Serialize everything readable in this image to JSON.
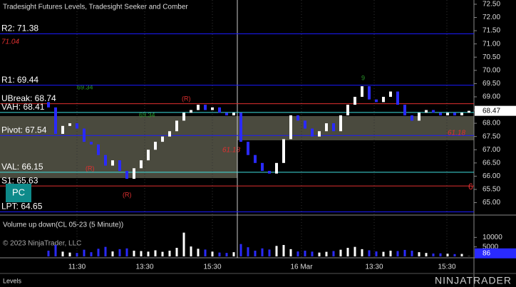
{
  "chart_data": {
    "type": "candlestick",
    "title": "Tradesight Futures Levels, Tradesight Seeker and Comber",
    "volume_title": "Volume up down(CL 05-23 (5 Minute))",
    "copyright": "© 2023 NinjaTrader, LLC",
    "panel_label": "Levels",
    "brand": "NINJATRADER",
    "badge": "PC",
    "up_color": "#ffffff",
    "down_color": "#2a2aff",
    "open": [
      68.8,
      68.6,
      67.6,
      67.9,
      68.0,
      67.8,
      67.3,
      67.2,
      66.8,
      66.4,
      66.6,
      66.2,
      65.9,
      66.3,
      66.6,
      67.0,
      67.3,
      67.5,
      67.7,
      68.1,
      68.4,
      68.5,
      68.7,
      68.5,
      68.6,
      68.4,
      68.3,
      68.4,
      67.3,
      66.8,
      66.5,
      66.2,
      66.1,
      66.5,
      67.4,
      68.3,
      68.1,
      67.8,
      67.5,
      67.7,
      68.0,
      67.7,
      68.3,
      68.7,
      69.0,
      69.4,
      68.9,
      68.8,
      69.0,
      69.2,
      68.7,
      68.3,
      68.1,
      68.4,
      68.5,
      68.4,
      68.3,
      68.4,
      68.3,
      68.4
    ],
    "close": [
      68.6,
      67.6,
      67.9,
      68.0,
      67.8,
      67.3,
      67.2,
      66.8,
      66.4,
      66.6,
      66.2,
      65.9,
      66.3,
      66.6,
      67.0,
      67.3,
      67.5,
      67.7,
      68.1,
      68.4,
      68.5,
      68.7,
      68.5,
      68.6,
      68.4,
      68.3,
      68.4,
      67.3,
      66.8,
      66.5,
      66.2,
      66.1,
      66.5,
      67.4,
      68.3,
      68.1,
      67.8,
      67.5,
      67.7,
      68.0,
      67.7,
      68.3,
      68.7,
      69.0,
      69.4,
      68.9,
      68.8,
      69.0,
      69.2,
      68.7,
      68.3,
      68.1,
      68.4,
      68.5,
      68.4,
      68.3,
      68.4,
      68.3,
      68.4,
      68.47
    ],
    "volume": [
      3000,
      6000,
      2500,
      2000,
      1800,
      3500,
      2200,
      4000,
      5000,
      2600,
      3800,
      4200,
      3000,
      2800,
      2500,
      3200,
      2400,
      3000,
      4500,
      12500,
      5200,
      4000,
      3600,
      2500,
      2000,
      1800,
      2200,
      6500,
      4800,
      3000,
      4200,
      3600,
      5500,
      6000,
      3800,
      2600,
      3000,
      2500,
      2000,
      2400,
      2800,
      3500,
      4500,
      5000,
      3800,
      3200,
      2600,
      2400,
      3000,
      2800,
      3400,
      3000,
      2200,
      1800,
      1500,
      1600,
      1400,
      1200,
      1300,
      86
    ],
    "ylim": [
      64.53,
      72.66
    ],
    "yticks": [
      {
        "value": 72.5,
        "label": "72.50"
      },
      {
        "value": 72.0,
        "label": "72.00"
      },
      {
        "value": 71.5,
        "label": "71.50"
      },
      {
        "value": 71.0,
        "label": "71.00"
      },
      {
        "value": 70.5,
        "label": "70.50"
      },
      {
        "value": 70.0,
        "label": "70.00"
      },
      {
        "value": 69.5,
        "label": "69.50"
      },
      {
        "value": 69.0,
        "label": "69.00"
      },
      {
        "value": 68.5,
        "label": "68.50"
      },
      {
        "value": 68.0,
        "label": "68.00"
      },
      {
        "value": 67.5,
        "label": "67.50"
      },
      {
        "value": 67.0,
        "label": "67.00"
      },
      {
        "value": 66.5,
        "label": "66.50"
      },
      {
        "value": 66.0,
        "label": "66.00"
      },
      {
        "value": 65.5,
        "label": "65.50"
      },
      {
        "value": 65.0,
        "label": "65.00"
      }
    ],
    "vlim": [
      0,
      21000
    ],
    "vticks": [
      10000,
      5000
    ],
    "last_price": {
      "value": 68.47,
      "label": "68.47"
    },
    "last_volume": 86,
    "xticks": [
      {
        "value": 4,
        "label": "11:30"
      },
      {
        "value": 13.5,
        "label": "13:30"
      },
      {
        "value": 23,
        "label": "15:30"
      },
      {
        "value": 35.5,
        "label": "16 Mar"
      },
      {
        "value": 45.7,
        "label": "13:30"
      },
      {
        "value": 55.9,
        "label": "15:30"
      }
    ],
    "session_break": 26.5,
    "levels": [
      {
        "name": "R2: 71.38",
        "value": 71.38,
        "color": "#1a1aff"
      },
      {
        "name": "R1: 69.44",
        "value": 69.44,
        "color": "#1a1aff"
      },
      {
        "name": "UBreak: 68.74",
        "value": 68.74,
        "color": "#e03030"
      },
      {
        "name": "VAH: 68.41",
        "value": 68.41,
        "color": "#40e0e0"
      },
      {
        "name": "Pivot: 67.54",
        "value": 67.54,
        "color": "#1a1aff"
      },
      {
        "name": "VAL: 66.15",
        "value": 66.15,
        "color": "#40e0e0"
      },
      {
        "name": "S1: 65.63",
        "value": 65.63,
        "color": "#e03030"
      },
      {
        "name": "LPT: 64.65",
        "value": 64.65,
        "color": "#1a1aff"
      }
    ],
    "annotations": {
      "top_red": "71.04",
      "green_a": "69.34",
      "green_b": "69.34",
      "red_a": "61.18",
      "red_b": "61.18",
      "red_c": "6",
      "r1": "(R)",
      "r2": "(R)",
      "r3": "(R)",
      "g9": "9"
    }
  }
}
